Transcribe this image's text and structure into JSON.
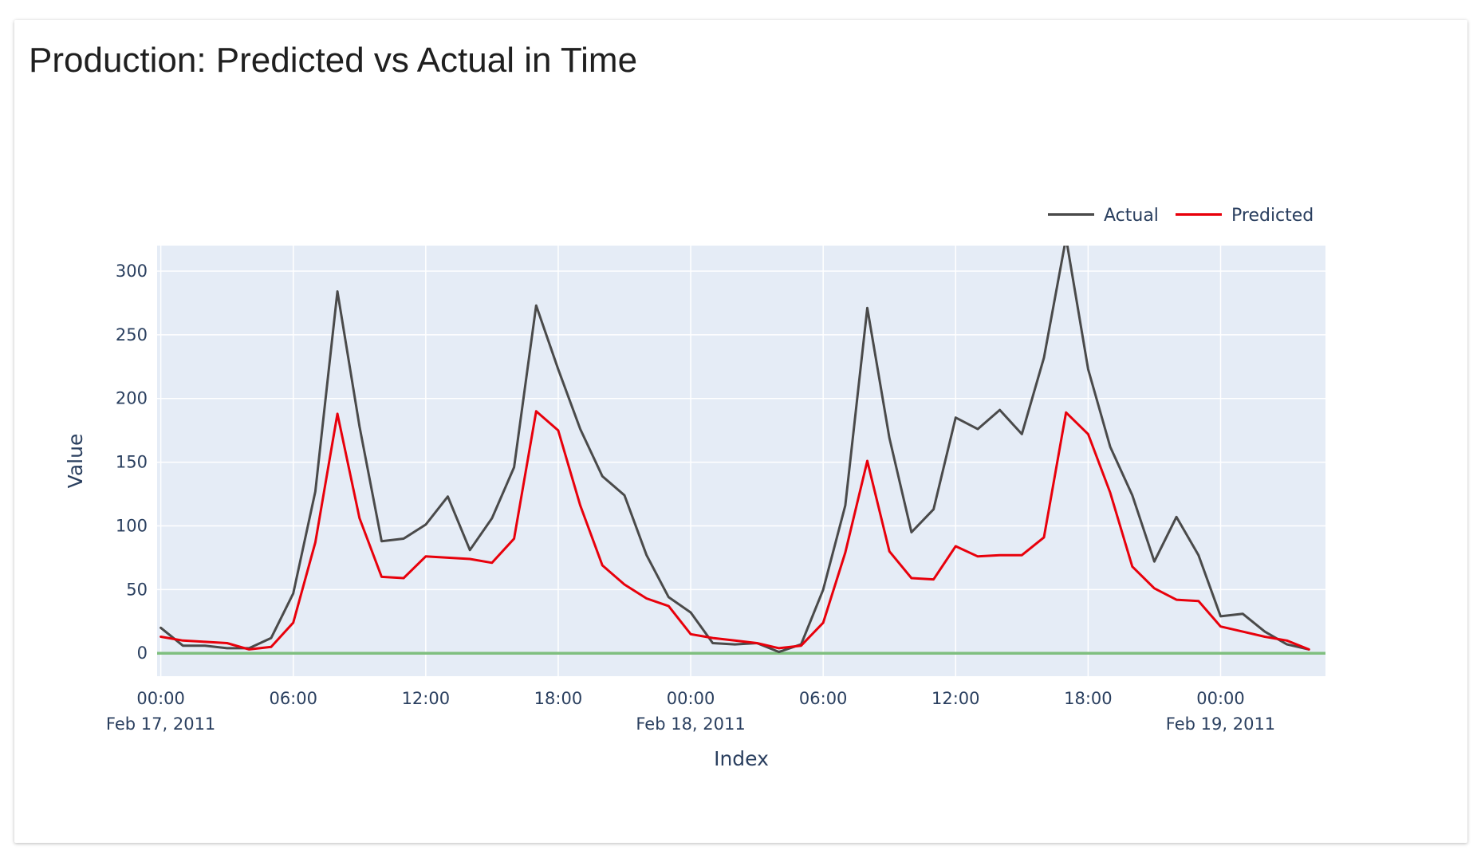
{
  "card": {
    "title": "Production: Predicted vs Actual in Time"
  },
  "chart_data": {
    "type": "line",
    "title": "",
    "xlabel": "Index",
    "ylabel": "Value",
    "x_start": "2011-02-17 00:00",
    "x_step_hours": 1,
    "xlim": [
      "2011-02-16 23:50",
      "2011-02-19 04:45"
    ],
    "ylim": [
      -18,
      320
    ],
    "y_ticks": [
      0,
      50,
      100,
      150,
      200,
      250,
      300
    ],
    "x_ticks": [
      {
        "time": "00:00",
        "date": "Feb 17, 2011",
        "hour": 0
      },
      {
        "time": "06:00",
        "date": "",
        "hour": 6
      },
      {
        "time": "12:00",
        "date": "",
        "hour": 12
      },
      {
        "time": "18:00",
        "date": "",
        "hour": 18
      },
      {
        "time": "00:00",
        "date": "Feb 18, 2011",
        "hour": 24
      },
      {
        "time": "06:00",
        "date": "",
        "hour": 30
      },
      {
        "time": "12:00",
        "date": "",
        "hour": 36
      },
      {
        "time": "18:00",
        "date": "",
        "hour": 42
      },
      {
        "time": "00:00",
        "date": "Feb 19, 2011",
        "hour": 48
      }
    ],
    "grid": true,
    "legend_position": "top-right",
    "background_color": "#e5ecf6",
    "series": [
      {
        "name": "Actual",
        "color": "#4a4a4a",
        "values": [
          20,
          6,
          6,
          4,
          4,
          12,
          47,
          127,
          284,
          178,
          88,
          90,
          101,
          123,
          81,
          106,
          146,
          273,
          223,
          176,
          139,
          124,
          77,
          44,
          32,
          8,
          7,
          8,
          1,
          7,
          50,
          116,
          271,
          169,
          95,
          113,
          185,
          176,
          191,
          172,
          232,
          326,
          223,
          162,
          124,
          72,
          107,
          77,
          29,
          31,
          17,
          7,
          3
        ]
      },
      {
        "name": "Predicted",
        "color": "#e8000b",
        "values": [
          13,
          10,
          9,
          8,
          3,
          5,
          24,
          87,
          188,
          106,
          60,
          59,
          76,
          75,
          74,
          71,
          90,
          190,
          175,
          116,
          69,
          54,
          43,
          37,
          15,
          12,
          10,
          8,
          4,
          6,
          24,
          79,
          151,
          80,
          59,
          58,
          84,
          76,
          77,
          77,
          91,
          189,
          172,
          126,
          68,
          51,
          42,
          41,
          21,
          17,
          13,
          10,
          3
        ]
      }
    ],
    "reference_line": {
      "value": 0,
      "color": "#7fbf7f"
    }
  }
}
